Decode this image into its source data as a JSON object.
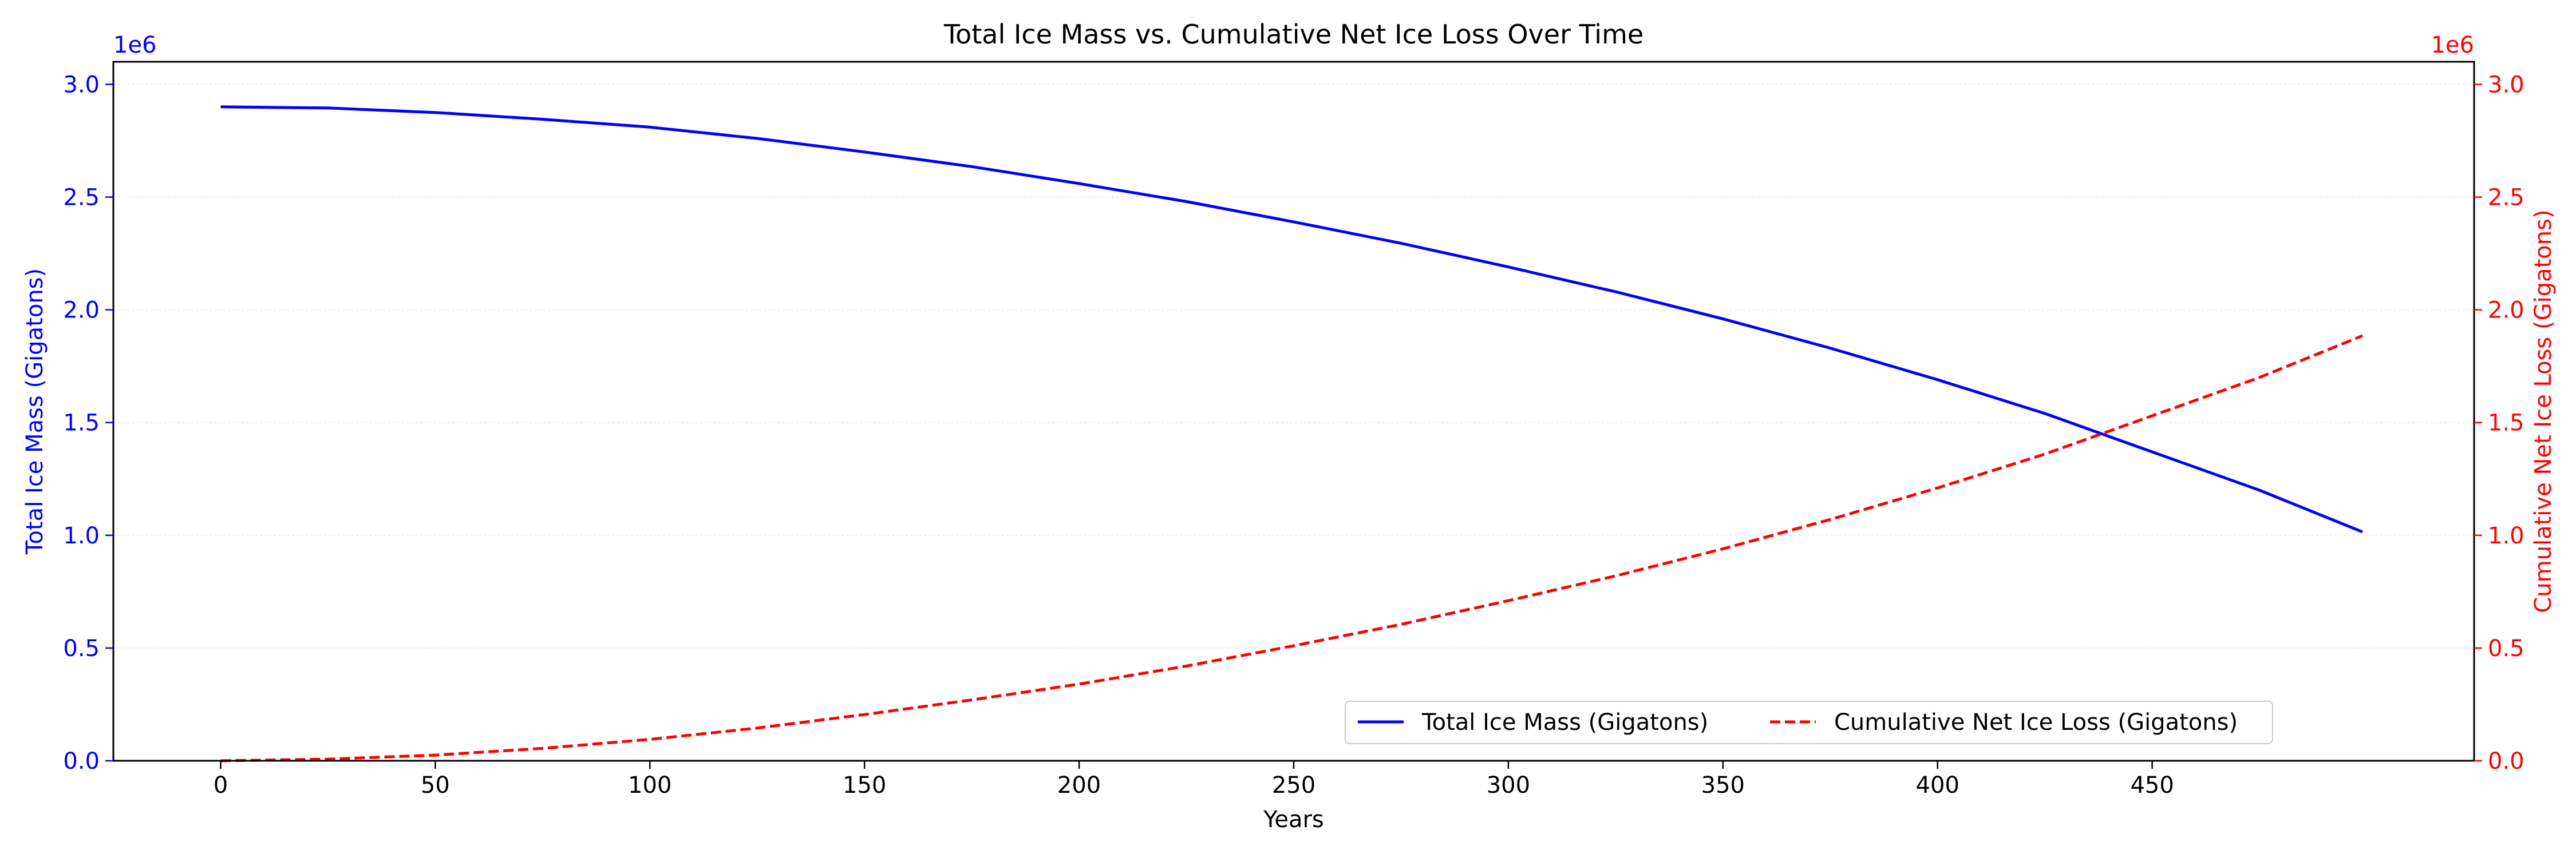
{
  "chart_data": {
    "type": "line",
    "title": "Total Ice Mass vs. Cumulative Net Ice Loss Over Time",
    "xlabel": "Years",
    "xlim": [
      -25,
      525
    ],
    "x_ticks": [
      0,
      50,
      100,
      150,
      200,
      250,
      300,
      350,
      400,
      450
    ],
    "x_tick_labels": [
      "0",
      "50",
      "100",
      "150",
      "200",
      "250",
      "300",
      "350",
      "400",
      "450"
    ],
    "y_left": {
      "label": "Total Ice Mass (Gigatons)",
      "color": "#0000ff",
      "ylim": [
        0,
        3100000
      ],
      "ticks": [
        0,
        500000,
        1000000,
        1500000,
        2000000,
        2500000,
        3000000
      ],
      "tick_labels": [
        "0.0",
        "0.5",
        "1.0",
        "1.5",
        "2.0",
        "2.5",
        "3.0"
      ],
      "offset_label": "1e6"
    },
    "y_right": {
      "label": "Cumulative Net Ice Loss (Gigatons)",
      "color": "#ff0000",
      "ylim": [
        0,
        3100000
      ],
      "ticks": [
        0,
        500000,
        1000000,
        1500000,
        2000000,
        2500000,
        3000000
      ],
      "tick_labels": [
        "0.0",
        "0.5",
        "1.0",
        "1.5",
        "2.0",
        "2.5",
        "3.0"
      ],
      "offset_label": "1e6"
    },
    "grid": "horizontal",
    "legend_position": "lower-right",
    "series": [
      {
        "name": "Total Ice Mass (Gigatons)",
        "axis": "left",
        "color": "#0000ff",
        "style": "solid",
        "x": [
          0,
          25,
          50,
          75,
          100,
          125,
          150,
          175,
          200,
          225,
          250,
          275,
          300,
          325,
          350,
          375,
          400,
          425,
          450,
          475,
          499
        ],
        "y": [
          2900000,
          2895000,
          2875000,
          2845000,
          2810000,
          2760000,
          2700000,
          2635000,
          2560000,
          2480000,
          2390000,
          2295000,
          2190000,
          2080000,
          1960000,
          1830000,
          1690000,
          1540000,
          1370000,
          1200000,
          1015000
        ]
      },
      {
        "name": "Cumulative Net Ice Loss (Gigatons)",
        "axis": "right",
        "color": "#ff0000",
        "style": "dashed",
        "x": [
          0,
          25,
          50,
          75,
          100,
          125,
          150,
          175,
          200,
          225,
          250,
          275,
          300,
          325,
          350,
          375,
          400,
          425,
          450,
          475,
          499
        ],
        "y": [
          0,
          7000,
          25000,
          55000,
          95000,
          145000,
          205000,
          270000,
          340000,
          420000,
          510000,
          605000,
          710000,
          820000,
          940000,
          1070000,
          1210000,
          1360000,
          1530000,
          1700000,
          1885000
        ]
      }
    ]
  }
}
